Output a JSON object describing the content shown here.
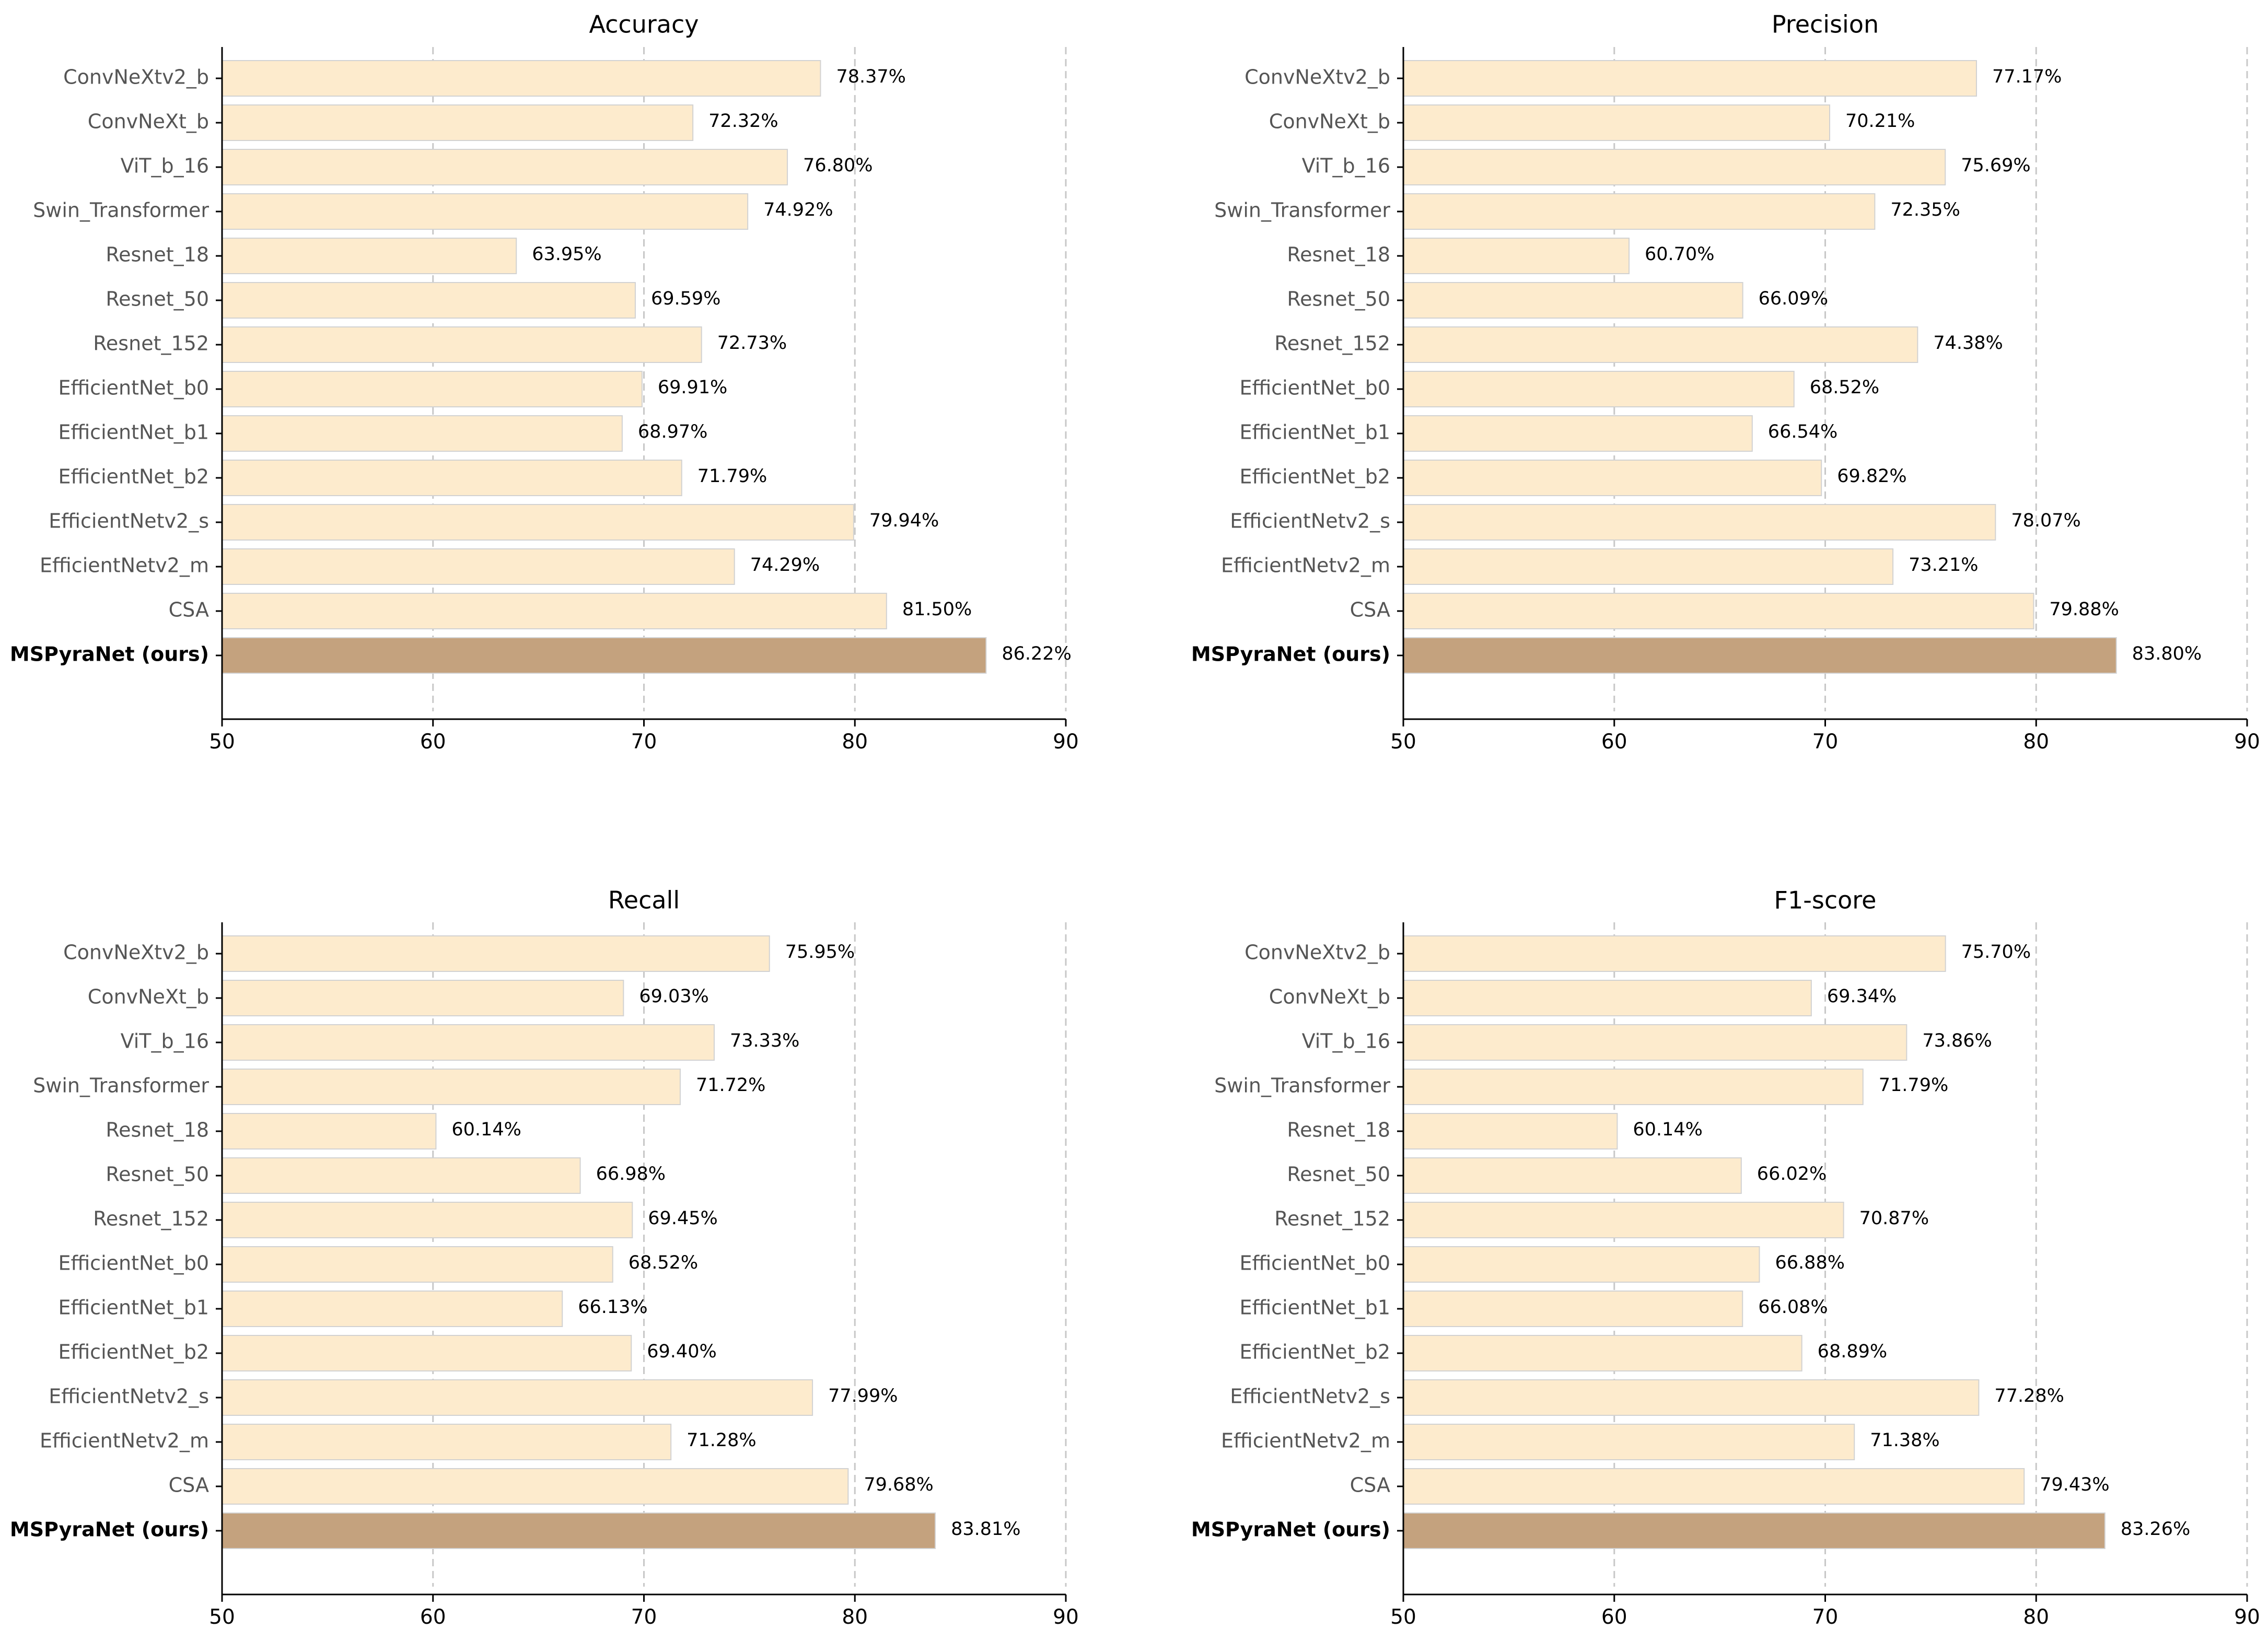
{
  "chart_data": [
    {
      "type": "bar",
      "orientation": "horizontal",
      "title": "Accuracy",
      "categories": [
        "ConvNeXtv2_b",
        "ConvNeXt_b",
        "ViT_b_16",
        "Swin_Transformer",
        "Resnet_18",
        "Resnet_50",
        "Resnet_152",
        "EfficientNet_b0",
        "EfficientNet_b1",
        "EfficientNet_b2",
        "EfficientNetv2_s",
        "EfficientNetv2_m",
        "CSA",
        "MSPyraNet (ours)"
      ],
      "values": [
        78.37,
        72.32,
        76.8,
        74.92,
        63.95,
        69.59,
        72.73,
        69.91,
        68.97,
        71.79,
        79.94,
        74.29,
        81.5,
        86.22
      ],
      "value_labels": [
        "78.37%",
        "72.32%",
        "76.80%",
        "74.92%",
        "63.95%",
        "69.59%",
        "72.73%",
        "69.91%",
        "68.97%",
        "71.79%",
        "79.94%",
        "74.29%",
        "81.50%",
        "86.22%"
      ],
      "highlight": "MSPyraNet (ours)",
      "xlim": [
        50,
        90
      ],
      "xticks": [
        "50",
        "60",
        "70",
        "80",
        "90"
      ],
      "grid": "x-dashed",
      "xlabel": "",
      "ylabel": ""
    },
    {
      "type": "bar",
      "orientation": "horizontal",
      "title": "Precision",
      "categories": [
        "ConvNeXtv2_b",
        "ConvNeXt_b",
        "ViT_b_16",
        "Swin_Transformer",
        "Resnet_18",
        "Resnet_50",
        "Resnet_152",
        "EfficientNet_b0",
        "EfficientNet_b1",
        "EfficientNet_b2",
        "EfficientNetv2_s",
        "EfficientNetv2_m",
        "CSA",
        "MSPyraNet (ours)"
      ],
      "values": [
        77.17,
        70.21,
        75.69,
        72.35,
        60.7,
        66.09,
        74.38,
        68.52,
        66.54,
        69.82,
        78.07,
        73.21,
        79.88,
        83.8
      ],
      "value_labels": [
        "77.17%",
        "70.21%",
        "75.69%",
        "72.35%",
        "60.70%",
        "66.09%",
        "74.38%",
        "68.52%",
        "66.54%",
        "69.82%",
        "78.07%",
        "73.21%",
        "79.88%",
        "83.80%"
      ],
      "highlight": "MSPyraNet (ours)",
      "xlim": [
        50,
        90
      ],
      "xticks": [
        "50",
        "60",
        "70",
        "80",
        "90"
      ],
      "grid": "x-dashed",
      "xlabel": "",
      "ylabel": ""
    },
    {
      "type": "bar",
      "orientation": "horizontal",
      "title": "Recall",
      "categories": [
        "ConvNeXtv2_b",
        "ConvNeXt_b",
        "ViT_b_16",
        "Swin_Transformer",
        "Resnet_18",
        "Resnet_50",
        "Resnet_152",
        "EfficientNet_b0",
        "EfficientNet_b1",
        "EfficientNet_b2",
        "EfficientNetv2_s",
        "EfficientNetv2_m",
        "CSA",
        "MSPyraNet (ours)"
      ],
      "values": [
        75.95,
        69.03,
        73.33,
        71.72,
        60.14,
        66.98,
        69.45,
        68.52,
        66.13,
        69.4,
        77.99,
        71.28,
        79.68,
        83.81
      ],
      "value_labels": [
        "75.95%",
        "69.03%",
        "73.33%",
        "71.72%",
        "60.14%",
        "66.98%",
        "69.45%",
        "68.52%",
        "66.13%",
        "69.40%",
        "77.99%",
        "71.28%",
        "79.68%",
        "83.81%"
      ],
      "highlight": "MSPyraNet (ours)",
      "xlim": [
        50,
        90
      ],
      "xticks": [
        "50",
        "60",
        "70",
        "80",
        "90"
      ],
      "grid": "x-dashed",
      "xlabel": "",
      "ylabel": ""
    },
    {
      "type": "bar",
      "orientation": "horizontal",
      "title": "F1-score",
      "categories": [
        "ConvNeXtv2_b",
        "ConvNeXt_b",
        "ViT_b_16",
        "Swin_Transformer",
        "Resnet_18",
        "Resnet_50",
        "Resnet_152",
        "EfficientNet_b0",
        "EfficientNet_b1",
        "EfficientNet_b2",
        "EfficientNetv2_s",
        "EfficientNetv2_m",
        "CSA",
        "MSPyraNet (ours)"
      ],
      "values": [
        75.7,
        69.34,
        73.86,
        71.79,
        60.14,
        66.02,
        70.87,
        66.88,
        66.08,
        68.89,
        77.28,
        71.38,
        79.43,
        83.26
      ],
      "value_labels": [
        "75.70%",
        "69.34%",
        "73.86%",
        "71.79%",
        "60.14%",
        "66.02%",
        "70.87%",
        "66.88%",
        "66.08%",
        "68.89%",
        "77.28%",
        "71.38%",
        "79.43%",
        "83.26%"
      ],
      "highlight": "MSPyraNet (ours)",
      "xlim": [
        50,
        90
      ],
      "xticks": [
        "50",
        "60",
        "70",
        "80",
        "90"
      ],
      "grid": "x-dashed",
      "xlabel": "",
      "ylabel": ""
    }
  ],
  "colors": {
    "bar_default": "#fdebcd",
    "bar_highlight": "#c4a27e",
    "bar_edge": "#d2d2d2",
    "grid": "#c8c8c8"
  }
}
